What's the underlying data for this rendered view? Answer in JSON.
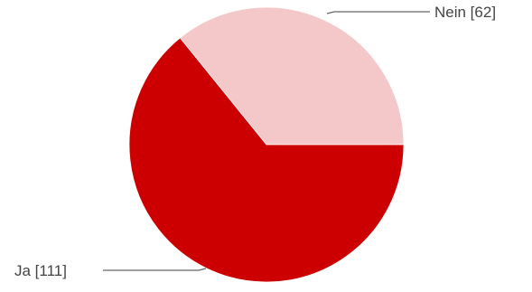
{
  "chart_data": {
    "type": "pie",
    "slices": [
      {
        "label": "Nein [62]",
        "value": 62,
        "color": "#f4c7c9"
      },
      {
        "label": "Ja [111]",
        "value": 111,
        "color": "#cc0000"
      }
    ],
    "start_angle_deg": 0,
    "direction": "counterclockwise-from-east",
    "legend": "none"
  }
}
